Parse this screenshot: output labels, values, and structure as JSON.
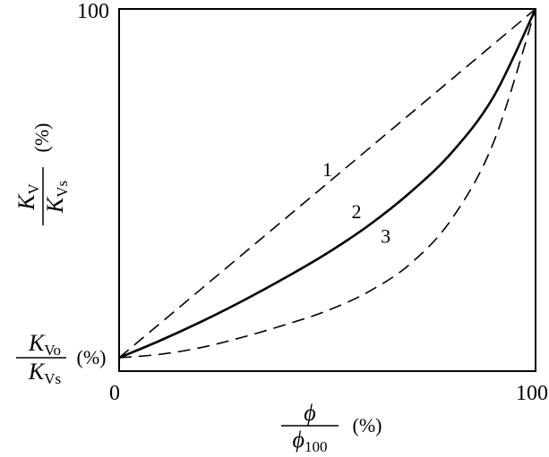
{
  "chart_data": {
    "type": "line",
    "x_range": [
      0,
      100
    ],
    "y_range": [
      0,
      100
    ],
    "x_tick_labels": [
      "0",
      "100"
    ],
    "y_tick_labels": [
      "100"
    ],
    "xlabel": {
      "numerator": "ϕ",
      "denominator": "ϕ",
      "denominator_sub": "100",
      "unit": "(%)"
    },
    "ylabel": {
      "numerator": "K",
      "numerator_sub": "V",
      "denominator": "K",
      "denominator_sub": "Vs",
      "unit": "(%)"
    },
    "y_origin_label": {
      "numerator": "K",
      "numerator_sub": "Vo",
      "denominator": "K",
      "denominator_sub": "Vs",
      "unit": "(%)"
    },
    "grid": false,
    "legend": "none",
    "series": [
      {
        "label": "1",
        "style": "dashed",
        "x": [
          0,
          100
        ],
        "y": [
          0,
          100
        ]
      },
      {
        "label": "2",
        "style": "solid",
        "x": [
          0,
          10,
          20,
          30,
          40,
          50,
          60,
          70,
          80,
          90,
          100
        ],
        "y": [
          0,
          5,
          10.5,
          16.5,
          23,
          30,
          38,
          47.5,
          59,
          75,
          100
        ]
      },
      {
        "label": "3",
        "style": "dashed",
        "x": [
          0,
          10,
          20,
          30,
          40,
          50,
          60,
          70,
          80,
          90,
          100
        ],
        "y": [
          0,
          1,
          3,
          6,
          9.5,
          13.5,
          19,
          27,
          40,
          62,
          100
        ]
      }
    ]
  }
}
